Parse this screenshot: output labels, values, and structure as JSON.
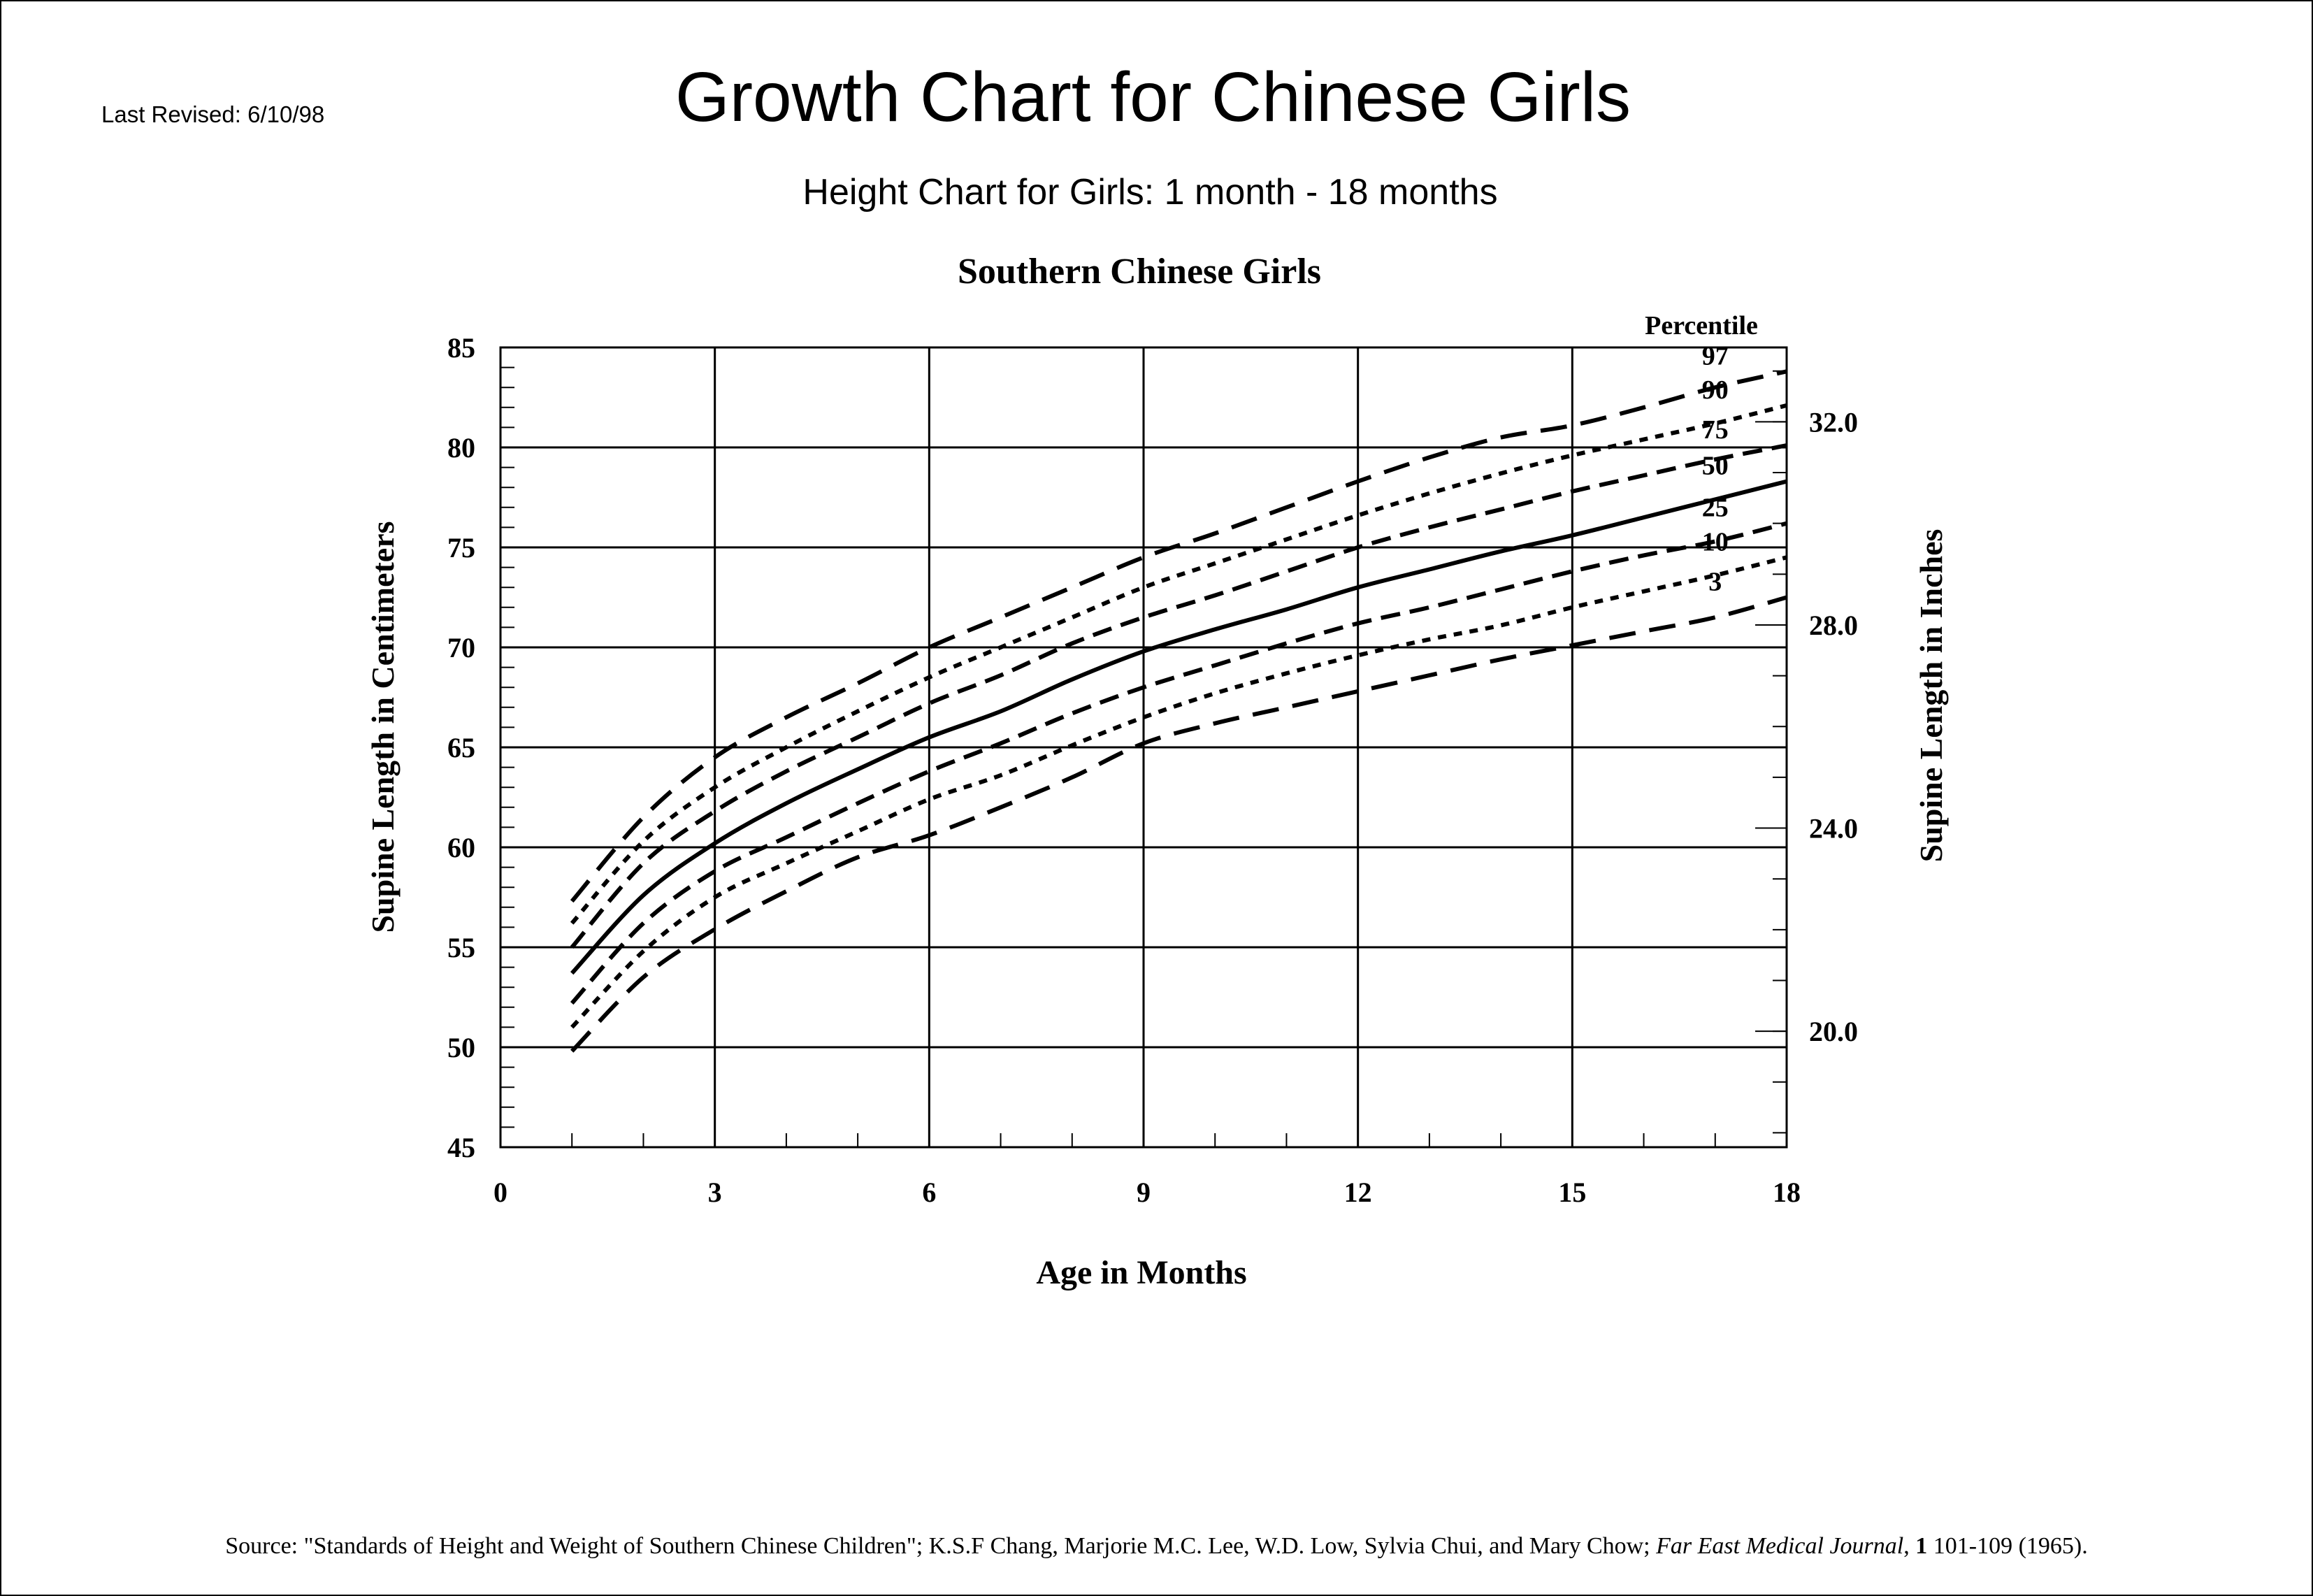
{
  "header": {
    "last_revised": "Last Revised: 6/10/98",
    "title": "Growth Chart for Chinese Girls",
    "subtitle": "Height Chart for Girls: 1 month - 18 months"
  },
  "footer": {
    "source_prefix": "Source: \"Standards of Height and Weight of Southern Chinese Children\"; K.S.F Chang, Marjorie M.C. Lee, W.D. Low, Sylvia Chui, and Mary Chow; ",
    "journal": "Far East Medical Journal",
    "volume": "1",
    "pages_year": " 101-109 (1965)."
  },
  "chart_data": {
    "type": "line",
    "title": "Southern Chinese Girls",
    "xlabel": "Age in Months",
    "ylabel": "Supine Length in Centimeters",
    "ylabel_right": "Supine Length in Inches",
    "legend_title": "Percentile",
    "legend_placement": "right, at line ends",
    "xlim": [
      0,
      18
    ],
    "ylim": [
      45,
      85
    ],
    "x_ticks": [
      0,
      3,
      6,
      9,
      12,
      15,
      18
    ],
    "y_ticks": [
      45,
      50,
      55,
      60,
      65,
      70,
      75,
      80,
      85
    ],
    "y_right_ticks": [
      {
        "label": "20.0",
        "inches": 20
      },
      {
        "label": "24.0",
        "inches": 24
      },
      {
        "label": "28.0",
        "inches": 28
      },
      {
        "label": "32.0",
        "inches": 32
      }
    ],
    "grid": true,
    "x": [
      1,
      2,
      3,
      4,
      5,
      6,
      7,
      8,
      9,
      10,
      11,
      12,
      13,
      14,
      15,
      16,
      17,
      18
    ],
    "series": [
      {
        "name": "97",
        "style": "long-dash",
        "values": [
          57.3,
          61.5,
          64.5,
          66.5,
          68.2,
          70.0,
          71.5,
          73.0,
          74.5,
          75.7,
          77.0,
          78.3,
          79.5,
          80.5,
          81.1,
          82.0,
          83.0,
          83.8
        ]
      },
      {
        "name": "90",
        "style": "dotted",
        "values": [
          56.2,
          60.3,
          63.0,
          65.0,
          66.8,
          68.5,
          70.0,
          71.5,
          73.0,
          74.2,
          75.4,
          76.6,
          77.7,
          78.7,
          79.6,
          80.4,
          81.2,
          82.1
        ]
      },
      {
        "name": "75",
        "style": "dashed",
        "values": [
          55.0,
          59.2,
          61.8,
          63.8,
          65.5,
          67.2,
          68.6,
          70.2,
          71.5,
          72.6,
          73.8,
          75.0,
          76.0,
          76.9,
          77.8,
          78.6,
          79.4,
          80.1
        ]
      },
      {
        "name": "50",
        "style": "solid",
        "values": [
          53.7,
          57.6,
          60.2,
          62.2,
          63.9,
          65.5,
          66.8,
          68.4,
          69.8,
          70.9,
          71.9,
          73.0,
          73.9,
          74.8,
          75.6,
          76.5,
          77.4,
          78.3
        ]
      },
      {
        "name": "25",
        "style": "dashed",
        "values": [
          52.2,
          56.2,
          58.8,
          60.5,
          62.2,
          63.8,
          65.2,
          66.7,
          68.0,
          69.1,
          70.2,
          71.2,
          72.0,
          72.9,
          73.8,
          74.6,
          75.3,
          76.2
        ]
      },
      {
        "name": "10",
        "style": "dotted",
        "values": [
          51.0,
          54.8,
          57.5,
          59.2,
          60.8,
          62.4,
          63.6,
          65.1,
          66.5,
          67.7,
          68.7,
          69.6,
          70.4,
          71.1,
          72.0,
          72.8,
          73.6,
          74.5
        ]
      },
      {
        "name": "3",
        "style": "long-dash",
        "values": [
          49.8,
          53.5,
          55.9,
          57.8,
          59.5,
          60.6,
          62.0,
          63.5,
          65.2,
          66.2,
          67.0,
          67.8,
          68.6,
          69.4,
          70.1,
          70.8,
          71.5,
          72.5
        ]
      }
    ]
  }
}
